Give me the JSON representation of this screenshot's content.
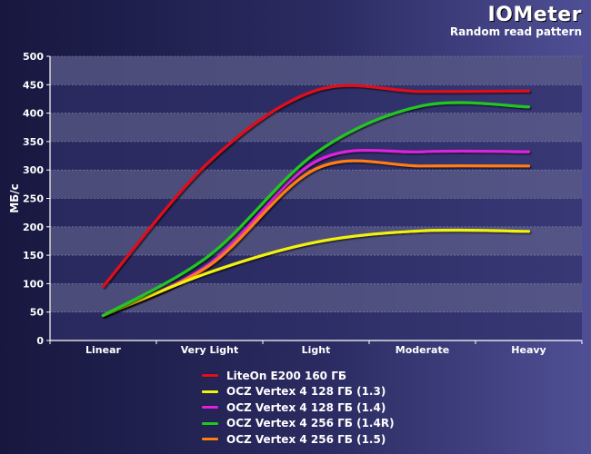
{
  "header": {
    "title": "IOMeter",
    "subtitle": "Random read pattern"
  },
  "chart_data": {
    "type": "line",
    "title": "IOMeter",
    "subtitle": "Random read pattern",
    "xlabel": "",
    "ylabel": "МБ/с",
    "categories": [
      "Linear",
      "Very Light",
      "Light",
      "Moderate",
      "Heavy"
    ],
    "ylim": [
      0,
      500
    ],
    "yticks": [
      0,
      50,
      100,
      150,
      200,
      250,
      300,
      350,
      400,
      450,
      500
    ],
    "grid": "horizontal bands",
    "legend_position": "bottom",
    "series": [
      {
        "name": "LiteOn E200 160 ГБ",
        "color": "#e0101a",
        "values": [
          95,
          315,
          440,
          438,
          439
        ]
      },
      {
        "name": "OCZ Vertex 4 128 ГБ (1.3)",
        "color": "#f2f20e",
        "values": [
          44,
          120,
          173,
          193,
          192
        ]
      },
      {
        "name": "OCZ Vertex 4 128 ГБ (1.4)",
        "color": "#dd22dd",
        "values": [
          44,
          135,
          315,
          332,
          332
        ]
      },
      {
        "name": "OCZ Vertex 4 256 ГБ (1.4R)",
        "color": "#22c622",
        "values": [
          44,
          150,
          330,
          413,
          411
        ]
      },
      {
        "name": "OCZ Vertex 4 256 ГБ (1.5)",
        "color": "#ff7d12",
        "values": [
          44,
          132,
          302,
          307,
          307
        ]
      }
    ]
  }
}
